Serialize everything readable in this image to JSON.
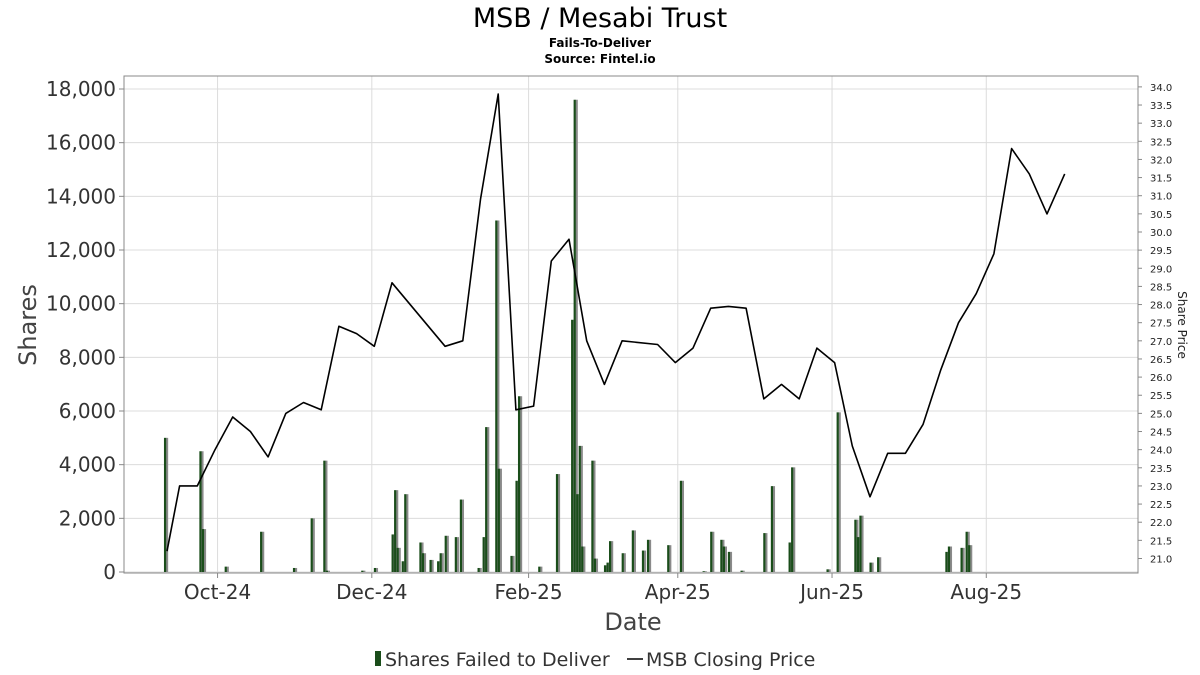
{
  "chart_data": {
    "type": "bar",
    "title": "MSB / Mesabi Trust",
    "subtitle": "Fails-To-Deliver",
    "source": "Source: Fintel.io",
    "xlabel": "Date",
    "ylabel": "Shares",
    "y2label": "Share Price",
    "ylim": [
      0,
      18000
    ],
    "y2lim": [
      20.6,
      34.3
    ],
    "xlim": [
      "2024-08-25",
      "2025-09-30"
    ],
    "grid": true,
    "legend_position": "bottom-center",
    "x_ticks": [
      {
        "label": "Oct-24",
        "date": "2024-10-01"
      },
      {
        "label": "Dec-24",
        "date": "2024-12-01"
      },
      {
        "label": "Feb-25",
        "date": "2025-02-01"
      },
      {
        "label": "Apr-25",
        "date": "2025-04-01"
      },
      {
        "label": "Jun-25",
        "date": "2025-06-01"
      },
      {
        "label": "Aug-25",
        "date": "2025-08-01"
      }
    ],
    "y_ticks": [
      "0",
      "2,000",
      "4,000",
      "6,000",
      "8,000",
      "10,000",
      "12,000",
      "14,000",
      "16,000",
      "18,000"
    ],
    "y2_ticks": [
      "21.0",
      "21.5",
      "22.0",
      "22.5",
      "23.0",
      "23.5",
      "24.0",
      "24.5",
      "25.0",
      "25.5",
      "26.0",
      "26.5",
      "27.0",
      "27.5",
      "28.0",
      "28.5",
      "29.0",
      "29.5",
      "30.0",
      "30.5",
      "31.0",
      "31.5",
      "32.0",
      "32.5",
      "33.0",
      "33.5",
      "34.0"
    ],
    "series": [
      {
        "name": "Shares Failed to Deliver",
        "type": "bar",
        "color": "#1a4d1a",
        "points": [
          [
            "2024-09-10",
            5000
          ],
          [
            "2024-09-24",
            4500
          ],
          [
            "2024-09-25",
            1600
          ],
          [
            "2024-10-04",
            200
          ],
          [
            "2024-10-18",
            1500
          ],
          [
            "2024-10-31",
            150
          ],
          [
            "2024-11-07",
            2000
          ],
          [
            "2024-11-12",
            4150
          ],
          [
            "2024-11-13",
            50
          ],
          [
            "2024-11-27",
            50
          ],
          [
            "2024-12-02",
            150
          ],
          [
            "2024-12-09",
            1400
          ],
          [
            "2024-12-10",
            3050
          ],
          [
            "2024-12-11",
            900
          ],
          [
            "2024-12-13",
            400
          ],
          [
            "2024-12-14",
            2900
          ],
          [
            "2024-12-20",
            1100
          ],
          [
            "2024-12-21",
            700
          ],
          [
            "2024-12-24",
            450
          ],
          [
            "2024-12-27",
            400
          ],
          [
            "2024-12-28",
            700
          ],
          [
            "2024-12-30",
            1350
          ],
          [
            "2025-01-03",
            1300
          ],
          [
            "2025-01-05",
            2700
          ],
          [
            "2025-01-12",
            150
          ],
          [
            "2025-01-14",
            1300
          ],
          [
            "2025-01-15",
            5400
          ],
          [
            "2025-01-19",
            13100
          ],
          [
            "2025-01-20",
            3850
          ],
          [
            "2025-01-25",
            600
          ],
          [
            "2025-01-27",
            3400
          ],
          [
            "2025-01-28",
            6550
          ],
          [
            "2025-02-05",
            200
          ],
          [
            "2025-02-12",
            3650
          ],
          [
            "2025-02-18",
            9400
          ],
          [
            "2025-02-19",
            17600
          ],
          [
            "2025-02-20",
            2900
          ],
          [
            "2025-02-21",
            4700
          ],
          [
            "2025-02-22",
            950
          ],
          [
            "2025-02-26",
            4150
          ],
          [
            "2025-02-27",
            500
          ],
          [
            "2025-03-03",
            250
          ],
          [
            "2025-03-04",
            350
          ],
          [
            "2025-03-05",
            1150
          ],
          [
            "2025-03-10",
            700
          ],
          [
            "2025-03-14",
            1550
          ],
          [
            "2025-03-18",
            800
          ],
          [
            "2025-03-20",
            1200
          ],
          [
            "2025-03-28",
            1000
          ],
          [
            "2025-04-02",
            3400
          ],
          [
            "2025-04-11",
            30
          ],
          [
            "2025-04-14",
            1500
          ],
          [
            "2025-04-18",
            1200
          ],
          [
            "2025-04-19",
            950
          ],
          [
            "2025-04-21",
            750
          ],
          [
            "2025-04-26",
            50
          ],
          [
            "2025-05-05",
            1450
          ],
          [
            "2025-05-08",
            3200
          ],
          [
            "2025-05-15",
            1100
          ],
          [
            "2025-05-16",
            3900
          ],
          [
            "2025-05-30",
            100
          ],
          [
            "2025-06-03",
            5950
          ],
          [
            "2025-06-10",
            1950
          ],
          [
            "2025-06-11",
            1300
          ],
          [
            "2025-06-12",
            2100
          ],
          [
            "2025-06-16",
            350
          ],
          [
            "2025-06-19",
            550
          ],
          [
            "2025-07-16",
            750
          ],
          [
            "2025-07-17",
            950
          ],
          [
            "2025-07-22",
            900
          ],
          [
            "2025-07-24",
            1500
          ],
          [
            "2025-07-25",
            1000
          ]
        ]
      },
      {
        "name": "MSB Closing Price",
        "type": "line",
        "color": "#000000",
        "points": [
          [
            "2024-09-11",
            21.2
          ],
          [
            "2024-09-16",
            23.0
          ],
          [
            "2024-09-23",
            23.0
          ],
          [
            "2024-09-30",
            24.0
          ],
          [
            "2024-10-07",
            24.9
          ],
          [
            "2024-10-14",
            24.5
          ],
          [
            "2024-10-21",
            23.8
          ],
          [
            "2024-10-28",
            25.0
          ],
          [
            "2024-11-04",
            25.3
          ],
          [
            "2024-11-11",
            25.1
          ],
          [
            "2024-11-18",
            27.4
          ],
          [
            "2024-11-25",
            27.2
          ],
          [
            "2024-12-02",
            26.85
          ],
          [
            "2024-12-09",
            28.6
          ],
          [
            "2024-12-30",
            26.85
          ],
          [
            "2025-01-06",
            27.0
          ],
          [
            "2025-01-13",
            30.9
          ],
          [
            "2025-01-20",
            33.8
          ],
          [
            "2025-01-27",
            25.1
          ],
          [
            "2025-02-03",
            25.2
          ],
          [
            "2025-02-10",
            29.2
          ],
          [
            "2025-02-17",
            29.8
          ],
          [
            "2025-02-24",
            27.0
          ],
          [
            "2025-03-03",
            25.8
          ],
          [
            "2025-03-10",
            27.0
          ],
          [
            "2025-03-24",
            26.9
          ],
          [
            "2025-03-31",
            26.4
          ],
          [
            "2025-04-07",
            26.8
          ],
          [
            "2025-04-14",
            27.9
          ],
          [
            "2025-04-21",
            27.95
          ],
          [
            "2025-04-28",
            27.9
          ],
          [
            "2025-05-05",
            25.4
          ],
          [
            "2025-05-12",
            25.8
          ],
          [
            "2025-05-19",
            25.4
          ],
          [
            "2025-05-26",
            26.8
          ],
          [
            "2025-06-02",
            26.4
          ],
          [
            "2025-06-09",
            24.1
          ],
          [
            "2025-06-16",
            22.7
          ],
          [
            "2025-06-23",
            23.9
          ],
          [
            "2025-06-30",
            23.9
          ],
          [
            "2025-07-07",
            24.7
          ],
          [
            "2025-07-14",
            26.2
          ],
          [
            "2025-07-21",
            27.5
          ],
          [
            "2025-07-28",
            28.3
          ],
          [
            "2025-08-04",
            29.4
          ],
          [
            "2025-08-11",
            32.3
          ],
          [
            "2025-08-18",
            31.6
          ],
          [
            "2025-08-25",
            30.5
          ],
          [
            "2025-09-01",
            31.6
          ]
        ]
      }
    ]
  }
}
